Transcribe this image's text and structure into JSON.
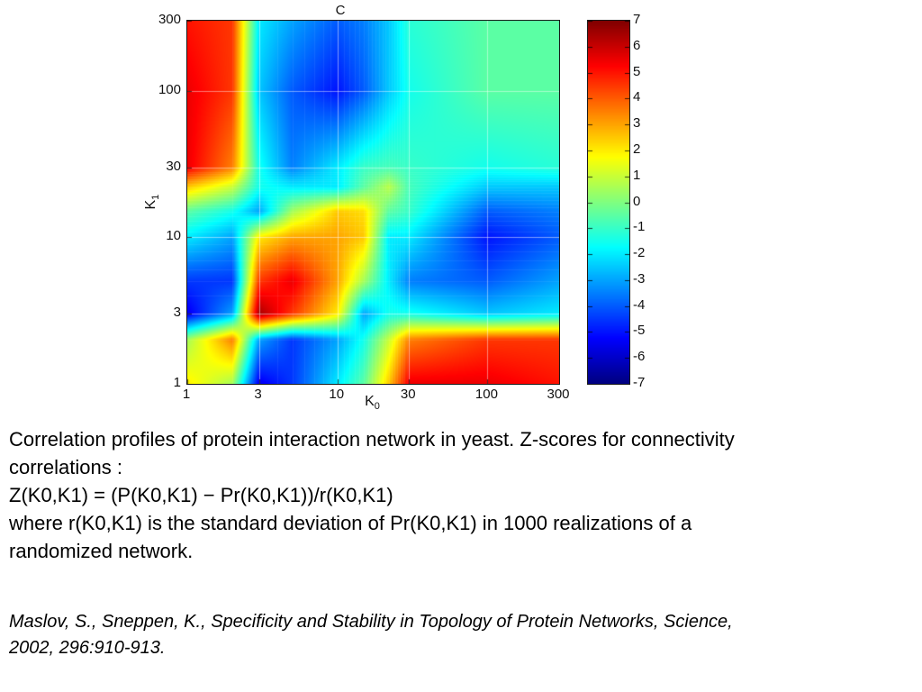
{
  "slide": {
    "background": "#ffffff",
    "text_color": "#000000"
  },
  "figure": {
    "title": "C",
    "xlabel": {
      "base": "K",
      "sub": "0"
    },
    "ylabel": {
      "base": "K",
      "sub": "1"
    },
    "x_tick_labels": [
      "1",
      "3",
      "10",
      "30",
      "100",
      "300"
    ],
    "y_tick_labels": [
      "300",
      "100",
      "30",
      "10",
      "3",
      "1"
    ],
    "axis_color": "#1a1a1a",
    "gridline_color": "#ffffff"
  },
  "caption": {
    "lines": [
      "Correlation profiles of protein interaction network in yeast. Z-scores for connectivity",
      "correlations :",
      "Z(K0,K1) = (P(K0,K1) − Pr(K0,K1))/r(K0,K1)",
      "where r(K0,K1) is the standard deviation of Pr(K0,K1) in 1000 realizations of a",
      "randomized network."
    ]
  },
  "citation": {
    "lines": [
      "Maslov, S., Sneppen, K., Specificity and Stability in Topology of Protein Networks, Science,",
      "2002, 296:910-913."
    ]
  },
  "chart_data": {
    "type": "heatmap",
    "title": "C",
    "xlabel": "K_0",
    "ylabel": "K_1",
    "x_scale": "log",
    "y_scale": "log",
    "x_ticks": [
      1,
      3,
      10,
      30,
      100,
      300
    ],
    "y_ticks": [
      1,
      3,
      10,
      30,
      100,
      300
    ],
    "x": [
      1,
      2,
      3,
      5,
      10,
      15,
      22,
      30,
      100,
      300
    ],
    "y": [
      1,
      2,
      3,
      5,
      10,
      15,
      22,
      30,
      100,
      300
    ],
    "z": [
      [
        2.0,
        0.5,
        -5.5,
        -4.5,
        -2.0,
        -0.5,
        2.5,
        5.5,
        5.5,
        5.0
      ],
      [
        0.5,
        3.5,
        -3.0,
        -4.5,
        -3.0,
        -1.5,
        1.0,
        3.5,
        4.5,
        4.5
      ],
      [
        -5.5,
        -3.0,
        6.5,
        4.5,
        2.0,
        -3.0,
        -1.5,
        -1.5,
        -2.5,
        -2.0
      ],
      [
        -4.5,
        -4.5,
        4.5,
        5.5,
        3.0,
        0.5,
        -2.0,
        -3.5,
        -4.0,
        -3.0
      ],
      [
        -2.0,
        -3.0,
        2.0,
        3.0,
        3.0,
        2.5,
        -2.0,
        -2.0,
        -5.0,
        -4.0
      ],
      [
        -0.5,
        -1.5,
        -3.0,
        0.5,
        2.5,
        2.2,
        -0.5,
        -1.0,
        -4.0,
        -3.5
      ],
      [
        2.5,
        1.0,
        -1.5,
        -2.0,
        -2.0,
        -0.5,
        0.8,
        -0.8,
        -2.5,
        -2.5
      ],
      [
        5.5,
        3.5,
        -1.5,
        -3.5,
        -2.0,
        -1.0,
        -0.8,
        -1.0,
        -1.5,
        -1.2
      ],
      [
        5.5,
        4.5,
        -2.5,
        -4.0,
        -5.0,
        -4.0,
        -2.5,
        -1.5,
        -0.5,
        -0.5
      ],
      [
        5.0,
        4.5,
        -2.0,
        -3.0,
        -4.0,
        -3.5,
        -2.5,
        -1.2,
        -0.5,
        -0.5
      ]
    ],
    "zlim": [
      -7,
      7
    ],
    "colormap": "jet",
    "colorbar_ticks": [
      7,
      6,
      5,
      4,
      3,
      2,
      1,
      0,
      -1,
      -2,
      -3,
      -4,
      -5,
      -6,
      -7
    ],
    "legend_position": "colorbar-right",
    "grid": true
  }
}
